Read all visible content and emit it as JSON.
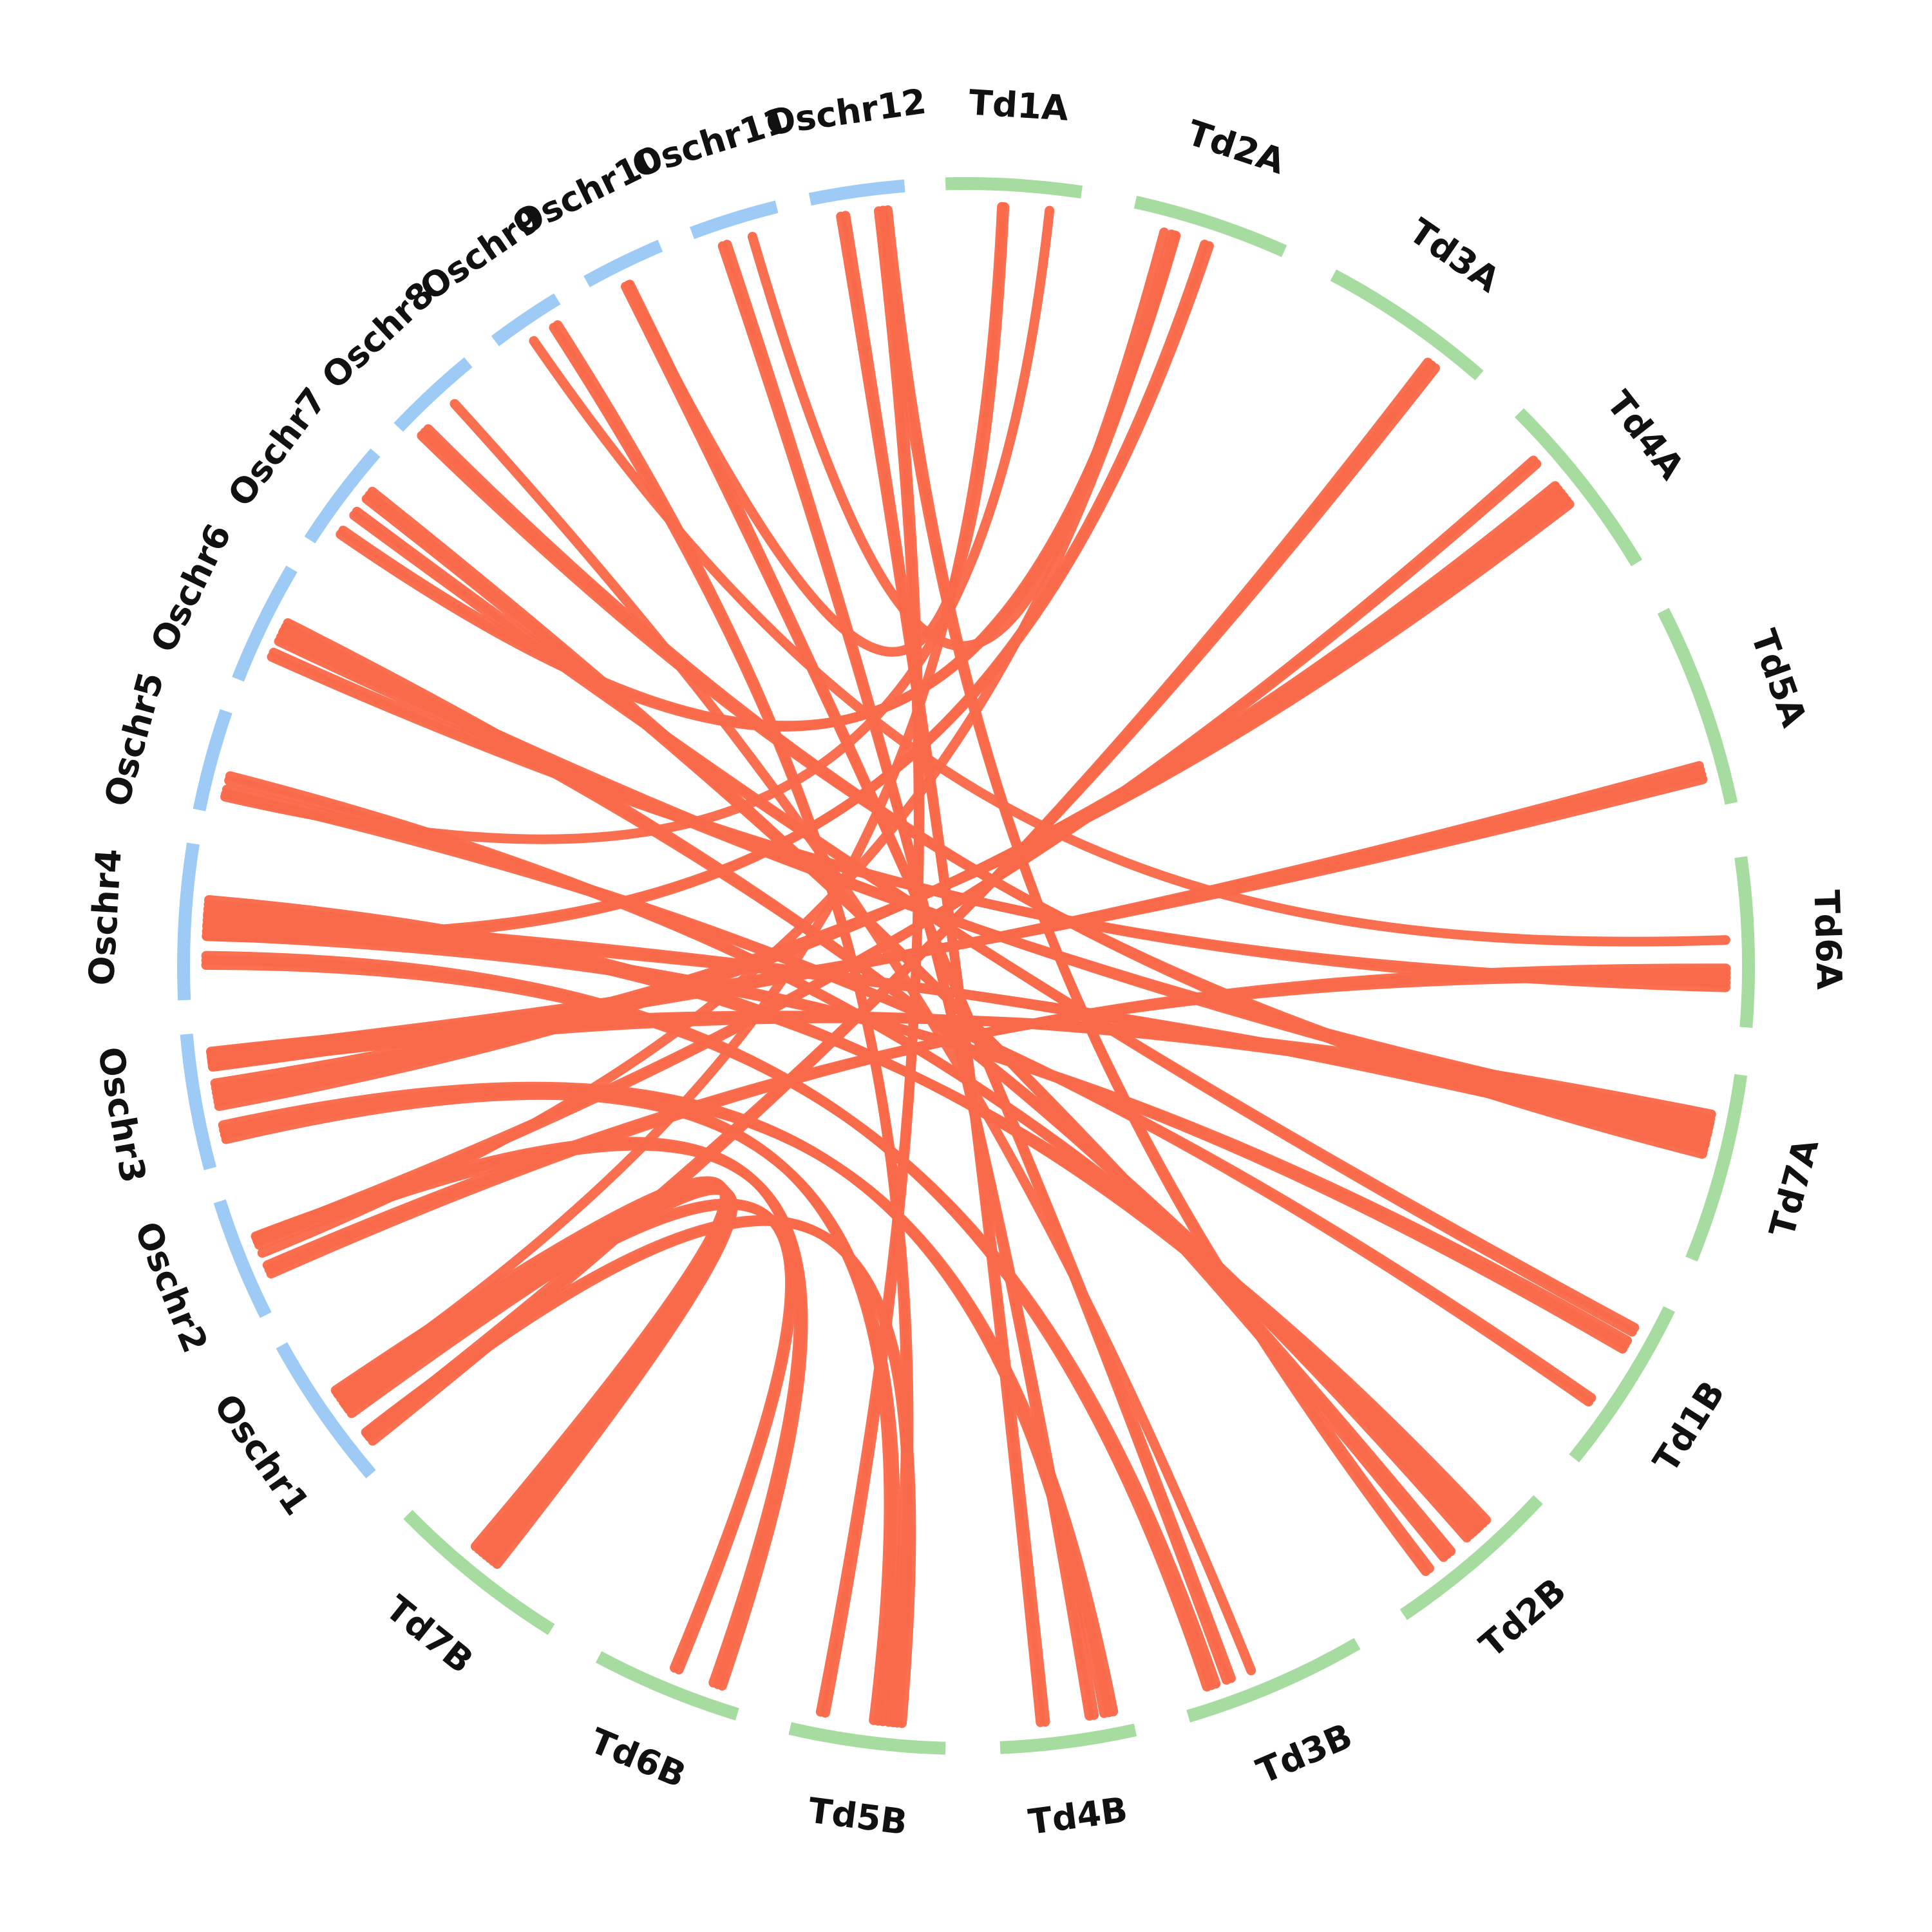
{
  "colors": {
    "rice_track": "#9ecbf5",
    "wheat_track": "#a7dca0",
    "link": "#f96a4a",
    "label": "#111111"
  },
  "chromosomes": [
    {
      "name": "Oschr1",
      "group": "rice"
    },
    {
      "name": "Oschr2",
      "group": "rice"
    },
    {
      "name": "Oschr3",
      "group": "rice"
    },
    {
      "name": "Oschr4",
      "group": "rice"
    },
    {
      "name": "Oschr5",
      "group": "rice"
    },
    {
      "name": "Oschr6",
      "group": "rice"
    },
    {
      "name": "Oschr7",
      "group": "rice"
    },
    {
      "name": "Oschr8",
      "group": "rice"
    },
    {
      "name": "Oschr9",
      "group": "rice"
    },
    {
      "name": "Oschr10",
      "group": "rice"
    },
    {
      "name": "Oschr11",
      "group": "rice"
    },
    {
      "name": "Oschr12",
      "group": "rice"
    },
    {
      "name": "Td1A",
      "group": "wheat"
    },
    {
      "name": "Td2A",
      "group": "wheat"
    },
    {
      "name": "Td3A",
      "group": "wheat"
    },
    {
      "name": "Td4A",
      "group": "wheat"
    },
    {
      "name": "Td5A",
      "group": "wheat"
    },
    {
      "name": "Td6A",
      "group": "wheat"
    },
    {
      "name": "Td7A",
      "group": "wheat"
    },
    {
      "name": "Td1B",
      "group": "wheat"
    },
    {
      "name": "Td2B",
      "group": "wheat"
    },
    {
      "name": "Td3B",
      "group": "wheat"
    },
    {
      "name": "Td4B",
      "group": "wheat"
    },
    {
      "name": "Td5B",
      "group": "wheat"
    },
    {
      "name": "Td6B",
      "group": "wheat"
    },
    {
      "name": "Td7B",
      "group": "wheat"
    }
  ],
  "links": [
    {
      "rice": "Oschr1",
      "wheat": "Td7B",
      "count": 7
    },
    {
      "rice": "Oschr1",
      "wheat": "Td5B",
      "count": 2
    },
    {
      "rice": "Oschr1",
      "wheat": "Td6B",
      "count": 2
    },
    {
      "rice": "Oschr1",
      "wheat": "Td3A",
      "count": 3
    },
    {
      "rice": "Oschr1",
      "wheat": "Td1A",
      "count": 1
    },
    {
      "rice": "Oschr2",
      "wheat": "Td6A",
      "count": 3
    },
    {
      "rice": "Oschr2",
      "wheat": "Td6B",
      "count": 3
    },
    {
      "rice": "Oschr2",
      "wheat": "Td2A",
      "count": 1
    },
    {
      "rice": "Oschr2",
      "wheat": "Td4A",
      "count": 2
    },
    {
      "rice": "Oschr3",
      "wheat": "Td4A",
      "count": 6
    },
    {
      "rice": "Oschr3",
      "wheat": "Td4B",
      "count": 3
    },
    {
      "rice": "Oschr3",
      "wheat": "Td5A",
      "count": 4
    },
    {
      "rice": "Oschr3",
      "wheat": "Td5B",
      "count": 3
    },
    {
      "rice": "Oschr3",
      "wheat": "Td7A",
      "count": 4
    },
    {
      "rice": "Oschr4",
      "wheat": "Td2A",
      "count": 2
    },
    {
      "rice": "Oschr4",
      "wheat": "Td2B",
      "count": 4
    },
    {
      "rice": "Oschr4",
      "wheat": "Td3B",
      "count": 3
    },
    {
      "rice": "Oschr4",
      "wheat": "Td1B",
      "count": 3
    },
    {
      "rice": "Oschr4",
      "wheat": "Td7A",
      "count": 3
    },
    {
      "rice": "Oschr5",
      "wheat": "Td1B",
      "count": 2
    },
    {
      "rice": "Oschr5",
      "wheat": "Td2B",
      "count": 2
    },
    {
      "rice": "Oschr5",
      "wheat": "Td1A",
      "count": 1
    },
    {
      "rice": "Oschr6",
      "wheat": "Td6A",
      "count": 2
    },
    {
      "rice": "Oschr6",
      "wheat": "Td7A",
      "count": 3
    },
    {
      "rice": "Oschr6",
      "wheat": "Td2B",
      "count": 3
    },
    {
      "rice": "Oschr7",
      "wheat": "Td2B",
      "count": 3
    },
    {
      "rice": "Oschr7",
      "wheat": "Td2A",
      "count": 2
    },
    {
      "rice": "Oschr7",
      "wheat": "Td1B",
      "count": 2
    },
    {
      "rice": "Oschr8",
      "wheat": "Td7A",
      "count": 3
    },
    {
      "rice": "Oschr8",
      "wheat": "Td3B",
      "count": 1
    },
    {
      "rice": "Oschr9",
      "wheat": "Td5B",
      "count": 2
    },
    {
      "rice": "Oschr9",
      "wheat": "Td6A",
      "count": 1
    },
    {
      "rice": "Oschr10",
      "wheat": "Td3B",
      "count": 2
    },
    {
      "rice": "Oschr10",
      "wheat": "Td1A",
      "count": 1
    },
    {
      "rice": "Oschr11",
      "wheat": "Td4B",
      "count": 2
    },
    {
      "rice": "Oschr11",
      "wheat": "Td2A",
      "count": 1
    },
    {
      "rice": "Oschr12",
      "wheat": "Td4B",
      "count": 2
    },
    {
      "rice": "Oschr12",
      "wheat": "Td5B",
      "count": 2
    },
    {
      "rice": "Oschr12",
      "wheat": "Td2B",
      "count": 2
    }
  ]
}
